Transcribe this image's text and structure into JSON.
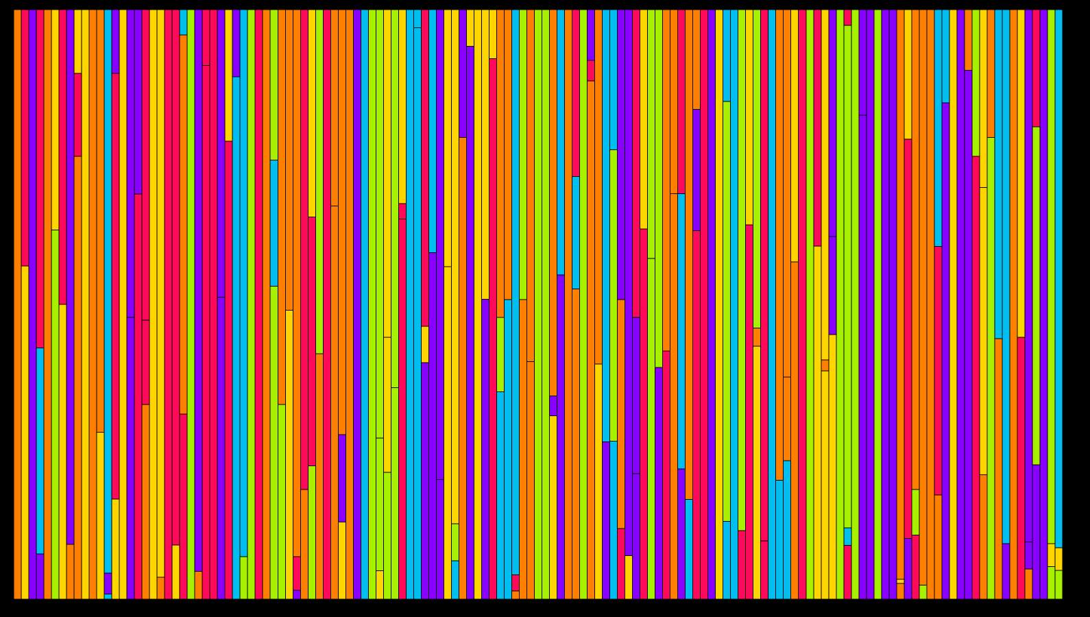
{
  "palette": {
    "o": "#ff7f00",
    "r": "#ff0a5a",
    "p": "#8800ff",
    "y": "#ffd500",
    "l": "#a6f000",
    "c": "#00bff0"
  },
  "stripes": [
    [
      [
        "o",
        100
      ]
    ],
    [
      [
        "r",
        43.5
      ],
      [
        "y",
        56.5
      ]
    ],
    [
      [
        "p",
        100
      ]
    ],
    [
      [
        "r",
        57.4
      ],
      [
        "c",
        34.9
      ],
      [
        "p",
        7.7
      ]
    ],
    [
      [
        "o",
        100
      ]
    ],
    [
      [
        "y",
        37.4
      ],
      [
        "l",
        62.6
      ]
    ],
    [
      [
        "r",
        50
      ],
      [
        "y",
        50
      ]
    ],
    [
      [
        "p",
        90.7
      ],
      [
        "o",
        9.3
      ]
    ],
    [
      [
        "y",
        10.8
      ],
      [
        "r",
        14.1
      ],
      [
        "o",
        75.1
      ]
    ],
    [
      [
        "y",
        100
      ]
    ],
    [
      [
        "o",
        100
      ]
    ],
    [
      [
        "o",
        71.7
      ],
      [
        "y",
        28.3
      ]
    ],
    [
      [
        "c",
        95.6
      ],
      [
        "p",
        3.5
      ],
      [
        "c",
        0.9
      ]
    ],
    [
      [
        "p",
        10.8
      ],
      [
        "r",
        72.2
      ],
      [
        "y",
        17
      ]
    ],
    [
      [
        "y",
        100
      ]
    ],
    [
      [
        "p",
        52.2
      ],
      [
        "p",
        47.8
      ]
    ],
    [
      [
        "p",
        31.3
      ],
      [
        "r",
        68.7
      ]
    ],
    [
      [
        "r",
        52.7
      ],
      [
        "r",
        14.3
      ],
      [
        "o",
        33
      ]
    ],
    [
      [
        "y",
        100
      ]
    ],
    [
      [
        "y",
        96.3
      ],
      [
        "o",
        3.7
      ]
    ],
    [
      [
        "r",
        100
      ]
    ],
    [
      [
        "r",
        90.8
      ],
      [
        "y",
        9.2
      ]
    ],
    [
      [
        "c",
        4.3
      ],
      [
        "o",
        64.3
      ],
      [
        "r",
        31.4
      ]
    ],
    [
      [
        "l",
        100
      ]
    ],
    [
      [
        "p",
        95.3
      ],
      [
        "o",
        4.7
      ]
    ],
    [
      [
        "r",
        9.5
      ],
      [
        "r",
        90.5
      ]
    ],
    [
      [
        "r",
        100
      ]
    ],
    [
      [
        "p",
        48.8
      ],
      [
        "p",
        51.2
      ]
    ],
    [
      [
        "y",
        22.3
      ],
      [
        "r",
        77.7
      ]
    ],
    [
      [
        "p",
        11.4
      ],
      [
        "c",
        88.6
      ]
    ],
    [
      [
        "c",
        92.8
      ],
      [
        "l",
        7.2
      ]
    ],
    [
      [
        "l",
        100
      ]
    ],
    [
      [
        "r",
        100
      ]
    ],
    [
      [
        "o",
        100
      ]
    ],
    [
      [
        "l",
        25.5
      ],
      [
        "c",
        21.4
      ],
      [
        "l",
        53.1
      ]
    ],
    [
      [
        "o",
        67
      ],
      [
        "l",
        33
      ]
    ],
    [
      [
        "o",
        51
      ],
      [
        "y",
        49
      ]
    ],
    [
      [
        "o",
        92.8
      ],
      [
        "r",
        5.7
      ],
      [
        "p",
        1.5
      ]
    ],
    [
      [
        "r",
        81.4
      ],
      [
        "o",
        18.6
      ]
    ],
    [
      [
        "y",
        35.2
      ],
      [
        "r",
        42.2
      ],
      [
        "l",
        22.6
      ]
    ],
    [
      [
        "l",
        58.4
      ],
      [
        "o",
        41.6
      ]
    ],
    [
      [
        "r",
        100
      ]
    ],
    [
      [
        "o",
        33.3
      ],
      [
        "o",
        66.7
      ]
    ],
    [
      [
        "o",
        72.1
      ],
      [
        "p",
        14.8
      ],
      [
        "y",
        13.1
      ]
    ],
    [
      [
        "o",
        100
      ]
    ],
    [
      [
        "p",
        100
      ]
    ],
    [
      [
        "c",
        100
      ]
    ],
    [
      [
        "l",
        100
      ]
    ],
    [
      [
        "l",
        72.7
      ],
      [
        "l",
        22.5
      ],
      [
        "y",
        4.8
      ]
    ],
    [
      [
        "y",
        55.6
      ],
      [
        "y",
        22.9
      ],
      [
        "l",
        21.5
      ]
    ],
    [
      [
        "l",
        64.1
      ],
      [
        "l",
        35.9
      ]
    ],
    [
      [
        "y",
        32.9
      ],
      [
        "r",
        2.6
      ],
      [
        "r",
        64.5
      ]
    ],
    [
      [
        "c",
        100
      ]
    ],
    [
      [
        "c",
        3.1
      ],
      [
        "c",
        96.9
      ]
    ],
    [
      [
        "r",
        53.7
      ],
      [
        "y",
        6.2
      ],
      [
        "p",
        40.1
      ]
    ],
    [
      [
        "c",
        41.2
      ],
      [
        "p",
        58.8
      ]
    ],
    [
      [
        "p",
        79.7
      ],
      [
        "p",
        20.3
      ]
    ],
    [
      [
        "y",
        43.6
      ],
      [
        "y",
        56.4
      ]
    ],
    [
      [
        "y",
        87.2
      ],
      [
        "l",
        6.3
      ],
      [
        "c",
        6.5
      ]
    ],
    [
      [
        "p",
        21.7
      ],
      [
        "o",
        78.3
      ]
    ],
    [
      [
        "y",
        6.2
      ],
      [
        "p",
        93.8
      ]
    ],
    [
      [
        "y",
        100
      ]
    ],
    [
      [
        "y",
        49.1
      ],
      [
        "p",
        50.9
      ]
    ],
    [
      [
        "y",
        8.3
      ],
      [
        "r",
        91.7
      ]
    ],
    [
      [
        "o",
        52.2
      ],
      [
        "l",
        12.6
      ],
      [
        "c",
        35.2
      ]
    ],
    [
      [
        "o",
        49.2
      ],
      [
        "c",
        50.8
      ]
    ],
    [
      [
        "c",
        95.9
      ],
      [
        "r",
        2.7
      ],
      [
        "o",
        1.4
      ]
    ],
    [
      [
        "l",
        49.2
      ],
      [
        "o",
        50.8
      ]
    ],
    [
      [
        "o",
        59.7
      ],
      [
        "o",
        40.3
      ]
    ],
    [
      [
        "l",
        100
      ]
    ],
    [
      [
        "l",
        100
      ]
    ],
    [
      [
        "o",
        65.5
      ],
      [
        "p",
        3.4
      ],
      [
        "y",
        31.1
      ]
    ],
    [
      [
        "c",
        45
      ],
      [
        "p",
        55
      ]
    ],
    [
      [
        "o",
        100
      ]
    ],
    [
      [
        "r",
        28.3
      ],
      [
        "c",
        19.1
      ],
      [
        "o",
        52.6
      ]
    ],
    [
      [
        "l",
        100
      ]
    ],
    [
      [
        "p",
        8.6
      ],
      [
        "r",
        3.5
      ],
      [
        "o",
        87.9
      ]
    ],
    [
      [
        "o",
        60.1
      ],
      [
        "y",
        39.9
      ]
    ],
    [
      [
        "c",
        73.3
      ],
      [
        "p",
        26.7
      ]
    ],
    [
      [
        "c",
        23.8
      ],
      [
        "l",
        49.4
      ],
      [
        "c",
        26.8
      ]
    ],
    [
      [
        "p",
        49.2
      ],
      [
        "o",
        38.8
      ],
      [
        "r",
        12
      ]
    ],
    [
      [
        "p",
        92.6
      ],
      [
        "y",
        7.4
      ]
    ],
    [
      [
        "r",
        52.2
      ],
      [
        "p",
        26.5
      ],
      [
        "p",
        21.3
      ]
    ],
    [
      [
        "y",
        37.2
      ],
      [
        "r",
        62.8
      ]
    ],
    [
      [
        "l",
        42.2
      ],
      [
        "l",
        57.8
      ]
    ],
    [
      [
        "l",
        60.7
      ],
      [
        "p",
        39.3
      ]
    ],
    [
      [
        "o",
        57.9
      ],
      [
        "r",
        42.1
      ]
    ],
    [
      [
        "o",
        31.2
      ],
      [
        "o",
        68.8
      ]
    ],
    [
      [
        "r",
        31.2
      ],
      [
        "c",
        46.7
      ],
      [
        "p",
        22.1
      ]
    ],
    [
      [
        "o",
        83.1
      ],
      [
        "c",
        16.9
      ]
    ],
    [
      [
        "o",
        16.9
      ],
      [
        "p",
        20.6
      ],
      [
        "r",
        62.5
      ]
    ],
    [
      [
        "r",
        100
      ]
    ],
    [
      [
        "p",
        100
      ]
    ],
    [
      [
        "y",
        100
      ]
    ],
    [
      [
        "c",
        15.6
      ],
      [
        "l",
        71.2
      ],
      [
        "c",
        13.2
      ]
    ],
    [
      [
        "c",
        100
      ]
    ],
    [
      [
        "l",
        88.4
      ],
      [
        "r",
        11.6
      ]
    ],
    [
      [
        "y",
        36.5
      ],
      [
        "r",
        63.5
      ]
    ],
    [
      [
        "l",
        54
      ],
      [
        "o",
        3.1
      ],
      [
        "y",
        42.9
      ]
    ],
    [
      [
        "r",
        90.1
      ],
      [
        "r",
        9.9
      ]
    ],
    [
      [
        "c",
        100
      ]
    ],
    [
      [
        "o",
        79.8
      ],
      [
        "c",
        20.2
      ]
    ],
    [
      [
        "o",
        62.3
      ],
      [
        "o",
        14.2
      ],
      [
        "c",
        23.5
      ]
    ],
    [
      [
        "y",
        42.8
      ],
      [
        "o",
        57.2
      ]
    ],
    [
      [
        "r",
        100
      ]
    ],
    [
      [
        "l",
        100
      ]
    ],
    [
      [
        "r",
        40.1
      ],
      [
        "y",
        59.9
      ]
    ],
    [
      [
        "y",
        59.4
      ],
      [
        "o",
        1.9
      ],
      [
        "y",
        38.7
      ]
    ],
    [
      [
        "p",
        38.5
      ],
      [
        "p",
        16.6
      ],
      [
        "y",
        44.9
      ]
    ],
    [
      [
        "l",
        100
      ]
    ],
    [
      [
        "r",
        2.7
      ],
      [
        "l",
        85.2
      ],
      [
        "c",
        3
      ],
      [
        "r",
        9.1
      ]
    ],
    [
      [
        "l",
        100
      ]
    ],
    [
      [
        "p",
        17.9
      ],
      [
        "p",
        82.1
      ]
    ],
    [
      [
        "p",
        100
      ]
    ],
    [
      [
        "l",
        100
      ]
    ],
    [
      [
        "p",
        100
      ]
    ],
    [
      [
        "p",
        100
      ]
    ],
    [
      [
        "o",
        96.6
      ],
      [
        "y",
        0.7
      ],
      [
        "o",
        2.7
      ]
    ],
    [
      [
        "y",
        22
      ],
      [
        "r",
        67.7
      ],
      [
        "p",
        10.3
      ]
    ],
    [
      [
        "o",
        81.4
      ],
      [
        "l",
        7.7
      ],
      [
        "r",
        10.9
      ]
    ],
    [
      [
        "o",
        97.6
      ],
      [
        "l",
        2.4
      ]
    ],
    [
      [
        "o",
        100
      ]
    ],
    [
      [
        "c",
        40.2
      ],
      [
        "r",
        42.1
      ],
      [
        "o",
        17.7
      ]
    ],
    [
      [
        "c",
        15.8
      ],
      [
        "p",
        84.2
      ]
    ],
    [
      [
        "y",
        100
      ]
    ],
    [
      [
        "p",
        100
      ]
    ],
    [
      [
        "o",
        10.3
      ],
      [
        "p",
        89.7
      ]
    ],
    [
      [
        "l",
        24.9
      ],
      [
        "r",
        75.1
      ]
    ],
    [
      [
        "y",
        30.2
      ],
      [
        "y",
        48.7
      ],
      [
        "o",
        21.1
      ]
    ],
    [
      [
        "o",
        21.7
      ],
      [
        "l",
        78.3
      ]
    ],
    [
      [
        "c",
        55.8
      ],
      [
        "o",
        44.2
      ]
    ],
    [
      [
        "c",
        90.6
      ],
      [
        "p",
        9.4
      ]
    ],
    [
      [
        "o",
        100
      ]
    ],
    [
      [
        "y",
        55.6
      ],
      [
        "r",
        44.4
      ]
    ],
    [
      [
        "p",
        90.3
      ],
      [
        "p",
        4.6
      ],
      [
        "o",
        5.1
      ]
    ],
    [
      [
        "r",
        19.9
      ],
      [
        "l",
        57.3
      ],
      [
        "p",
        22.8
      ]
    ],
    [
      [
        "p",
        100
      ]
    ],
    [
      [
        "l",
        90.6
      ],
      [
        "y",
        3.9
      ],
      [
        "l",
        5.5
      ]
    ],
    [
      [
        "c",
        91.3
      ],
      [
        "y",
        3.8
      ],
      [
        "l",
        4.9
      ]
    ]
  ]
}
